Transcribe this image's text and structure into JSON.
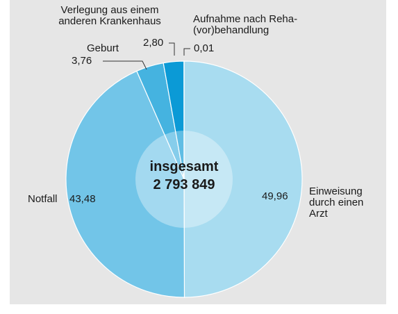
{
  "chart_data": {
    "type": "pie",
    "categories": [
      "Einweisung durch einen Arzt",
      "Notfall",
      "Geburt",
      "Verlegung aus einem anderen Krankenhaus",
      "Aufnahme nach Reha-(vor)behandlung"
    ],
    "values": [
      49.96,
      43.48,
      3.76,
      2.8,
      0.01
    ],
    "value_labels": [
      "49,96",
      "43,48",
      "3,76",
      "2,80",
      "0,01"
    ],
    "colors": [
      "#a8dcf0",
      "#72c5e8",
      "#45b3e0",
      "#0b9ad6",
      "#0a6fa8"
    ],
    "center_label": [
      "insgesamt",
      "2 793 849"
    ]
  }
}
